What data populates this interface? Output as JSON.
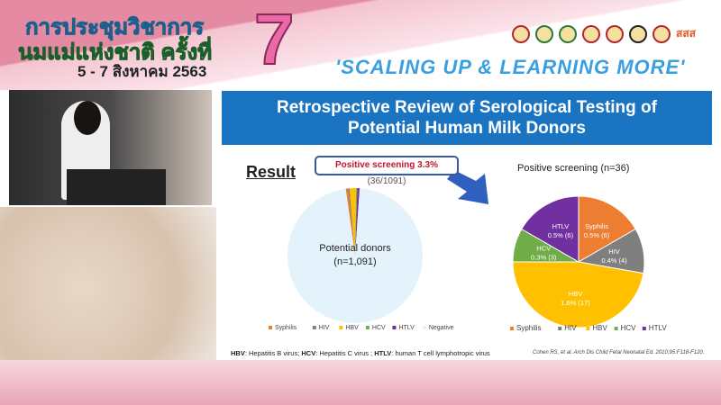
{
  "banner": {
    "title_line1": "การประชุมวิชาการ",
    "title_line2": "นมแม่แห่งชาติ ครั้งที่",
    "edition": "7",
    "dates": "5 - 7 สิงหาคม 2563",
    "slogan": "'SCALING UP & LEARNING MORE'",
    "logo_text": "สสส"
  },
  "slide": {
    "title_line1": "Retrospective Review of Serological Testing of",
    "title_line2": "Potential Human Milk Donors",
    "result_heading": "Result",
    "callout_bold": "Positive screening 3.3%",
    "callout_rest": " (36/1091)",
    "footnote_parts": [
      "HBV",
      ": Hepatitis B virus; ",
      "HCV",
      ": Hepatitis C virus ; ",
      "HTLV",
      ": human T cell lymphotropic virus"
    ],
    "citation": "Cohen RS, et al. Arch Dis Child Fetal Neonatal Ed. 2010;95:F118-F120."
  },
  "colors": {
    "Syphilis": "#ed7d31",
    "HIV": "#7f7f7f",
    "HBV": "#ffc000",
    "HCV": "#70ad47",
    "HTLV": "#7030a0",
    "Negative": "#e4f3fb",
    "header": "#1b74c1"
  },
  "chart_data": [
    {
      "type": "pie",
      "center_label": [
        "Potential donors",
        "(n=1,091)"
      ],
      "categories": [
        "Syphilis",
        "HIV",
        "HBV",
        "HCV",
        "HTLV",
        "Negative"
      ],
      "values": [
        6,
        4,
        17,
        3,
        6,
        1055
      ],
      "legend": "bottom"
    },
    {
      "type": "pie",
      "title": "Positive screening (n=36)",
      "categories": [
        "Syphilis",
        "HIV",
        "HBV",
        "HCV",
        "HTLV"
      ],
      "values": [
        6,
        4,
        17,
        3,
        6
      ],
      "labels": [
        "0.5% (6)",
        "0.4% (4)",
        "1.6% (17)",
        "0.3% (3)",
        "0.5% (6)"
      ],
      "legend": "bottom"
    }
  ]
}
